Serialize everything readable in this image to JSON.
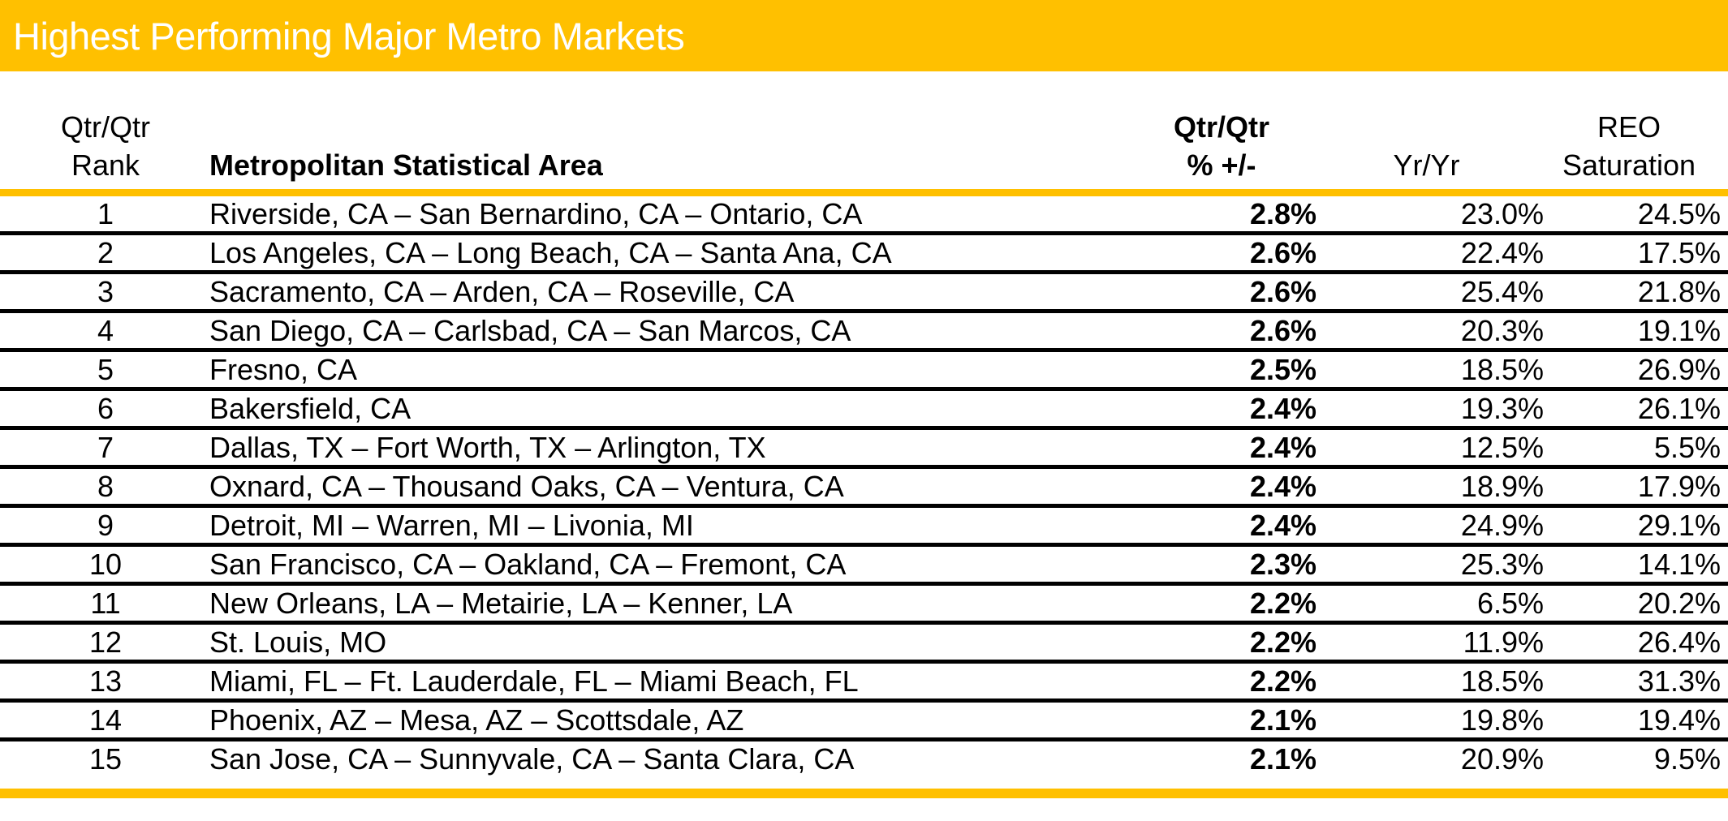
{
  "title": "Highest Performing Major Metro Markets",
  "colors": {
    "accent": "#FFC000",
    "title_text": "#FFFFFF",
    "body_text": "#000000"
  },
  "table": {
    "columns": [
      {
        "id": "rank",
        "label_line1": "Qtr/Qtr",
        "label_line2": "Rank"
      },
      {
        "id": "msa",
        "label_line1": "",
        "label_line2": "Metropolitan Statistical Area"
      },
      {
        "id": "qtr_qtr",
        "label_line1": "Qtr/Qtr",
        "label_line2": "% +/-"
      },
      {
        "id": "yr_yr",
        "label_line1": "",
        "label_line2": "Yr/Yr"
      },
      {
        "id": "reo_saturation",
        "label_line1": "REO",
        "label_line2": "Saturation"
      }
    ],
    "rows": [
      {
        "rank": "1",
        "msa": "Riverside, CA – San Bernardino, CA – Ontario, CA",
        "qtr_qtr": "2.8%",
        "yr_yr": "23.0%",
        "reo_saturation": "24.5%"
      },
      {
        "rank": "2",
        "msa": "Los Angeles, CA – Long Beach, CA – Santa Ana, CA",
        "qtr_qtr": "2.6%",
        "yr_yr": "22.4%",
        "reo_saturation": "17.5%"
      },
      {
        "rank": "3",
        "msa": "Sacramento, CA – Arden, CA – Roseville, CA",
        "qtr_qtr": "2.6%",
        "yr_yr": "25.4%",
        "reo_saturation": "21.8%"
      },
      {
        "rank": "4",
        "msa": "San Diego, CA – Carlsbad, CA – San Marcos, CA",
        "qtr_qtr": "2.6%",
        "yr_yr": "20.3%",
        "reo_saturation": "19.1%"
      },
      {
        "rank": "5",
        "msa": "Fresno, CA",
        "qtr_qtr": "2.5%",
        "yr_yr": "18.5%",
        "reo_saturation": "26.9%"
      },
      {
        "rank": "6",
        "msa": "Bakersfield, CA",
        "qtr_qtr": "2.4%",
        "yr_yr": "19.3%",
        "reo_saturation": "26.1%"
      },
      {
        "rank": "7",
        "msa": "Dallas, TX – Fort Worth, TX – Arlington, TX",
        "qtr_qtr": "2.4%",
        "yr_yr": "12.5%",
        "reo_saturation": "5.5%"
      },
      {
        "rank": "8",
        "msa": "Oxnard, CA – Thousand Oaks, CA – Ventura, CA",
        "qtr_qtr": "2.4%",
        "yr_yr": "18.9%",
        "reo_saturation": "17.9%"
      },
      {
        "rank": "9",
        "msa": "Detroit, MI – Warren, MI – Livonia, MI",
        "qtr_qtr": "2.4%",
        "yr_yr": "24.9%",
        "reo_saturation": "29.1%"
      },
      {
        "rank": "10",
        "msa": "San Francisco, CA – Oakland, CA – Fremont, CA",
        "qtr_qtr": "2.3%",
        "yr_yr": "25.3%",
        "reo_saturation": "14.1%"
      },
      {
        "rank": "11",
        "msa": "New Orleans, LA – Metairie, LA – Kenner, LA",
        "qtr_qtr": "2.2%",
        "yr_yr": "6.5%",
        "reo_saturation": "20.2%"
      },
      {
        "rank": "12",
        "msa": "St. Louis, MO",
        "qtr_qtr": "2.2%",
        "yr_yr": "11.9%",
        "reo_saturation": "26.4%"
      },
      {
        "rank": "13",
        "msa": "Miami, FL – Ft. Lauderdale, FL – Miami Beach, FL",
        "qtr_qtr": "2.2%",
        "yr_yr": "18.5%",
        "reo_saturation": "31.3%"
      },
      {
        "rank": "14",
        "msa": "Phoenix, AZ – Mesa, AZ – Scottsdale, AZ",
        "qtr_qtr": "2.1%",
        "yr_yr": "19.8%",
        "reo_saturation": "19.4%"
      },
      {
        "rank": "15",
        "msa": "San Jose, CA – Sunnyvale, CA – Santa Clara, CA",
        "qtr_qtr": "2.1%",
        "yr_yr": "20.9%",
        "reo_saturation": "9.5%"
      }
    ]
  },
  "chart_data": {
    "type": "table",
    "title": "Highest Performing Major Metro Markets",
    "columns": [
      "Qtr/Qtr Rank",
      "Metropolitan Statistical Area",
      "Qtr/Qtr % +/-",
      "Yr/Yr",
      "REO Saturation"
    ],
    "rows": [
      [
        1,
        "Riverside, CA – San Bernardino, CA – Ontario, CA",
        "2.8%",
        "23.0%",
        "24.5%"
      ],
      [
        2,
        "Los Angeles, CA – Long Beach, CA – Santa Ana, CA",
        "2.6%",
        "22.4%",
        "17.5%"
      ],
      [
        3,
        "Sacramento, CA – Arden, CA – Roseville, CA",
        "2.6%",
        "25.4%",
        "21.8%"
      ],
      [
        4,
        "San Diego, CA – Carlsbad, CA – San Marcos, CA",
        "2.6%",
        "20.3%",
        "19.1%"
      ],
      [
        5,
        "Fresno, CA",
        "2.5%",
        "18.5%",
        "26.9%"
      ],
      [
        6,
        "Bakersfield, CA",
        "2.4%",
        "19.3%",
        "26.1%"
      ],
      [
        7,
        "Dallas, TX – Fort Worth, TX – Arlington, TX",
        "2.4%",
        "12.5%",
        "5.5%"
      ],
      [
        8,
        "Oxnard, CA – Thousand Oaks, CA – Ventura, CA",
        "2.4%",
        "18.9%",
        "17.9%"
      ],
      [
        9,
        "Detroit, MI – Warren, MI – Livonia, MI",
        "2.4%",
        "24.9%",
        "29.1%"
      ],
      [
        10,
        "San Francisco, CA – Oakland, CA – Fremont, CA",
        "2.3%",
        "25.3%",
        "14.1%"
      ],
      [
        11,
        "New Orleans, LA – Metairie, LA – Kenner, LA",
        "2.2%",
        "6.5%",
        "20.2%"
      ],
      [
        12,
        "St. Louis, MO",
        "2.2%",
        "11.9%",
        "26.4%"
      ],
      [
        13,
        "Miami, FL – Ft. Lauderdale, FL – Miami Beach, FL",
        "2.2%",
        "18.5%",
        "31.3%"
      ],
      [
        14,
        "Phoenix, AZ – Mesa, AZ – Scottsdale, AZ",
        "2.1%",
        "19.8%",
        "19.4%"
      ],
      [
        15,
        "San Jose, CA – Sunnyvale, CA – Santa Clara, CA",
        "2.1%",
        "20.9%",
        "9.5%"
      ]
    ]
  }
}
